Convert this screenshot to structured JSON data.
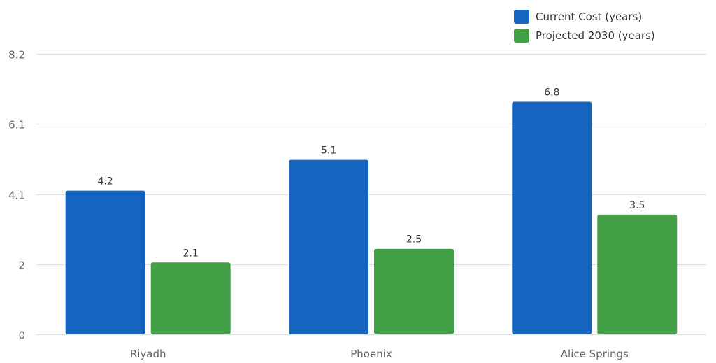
{
  "chart_data": {
    "type": "bar",
    "categories": [
      "Riyadh",
      "Phoenix",
      "Alice Springs"
    ],
    "series": [
      {
        "name": "Current Cost (years)",
        "values": [
          4.2,
          5.1,
          6.8
        ],
        "labels": [
          "4.2",
          "5.1",
          "6.8"
        ]
      },
      {
        "name": "Projected 2030 (years)",
        "values": [
          2.1,
          2.5,
          3.5
        ],
        "labels": [
          "2.1",
          "2.5",
          "3.5"
        ]
      }
    ],
    "colors": [
      "#1565C0",
      "#43A047"
    ],
    "yticks": [
      {
        "value": 0,
        "label": "0"
      },
      {
        "value": 2.05,
        "label": "2"
      },
      {
        "value": 4.1,
        "label": "4.1"
      },
      {
        "value": 6.15,
        "label": "6.1"
      },
      {
        "value": 8.2,
        "label": "8.2"
      }
    ],
    "ylim": [
      0,
      8.2
    ],
    "grid": true,
    "legend_position": "top-right",
    "title": "",
    "xlabel": "",
    "ylabel": ""
  }
}
